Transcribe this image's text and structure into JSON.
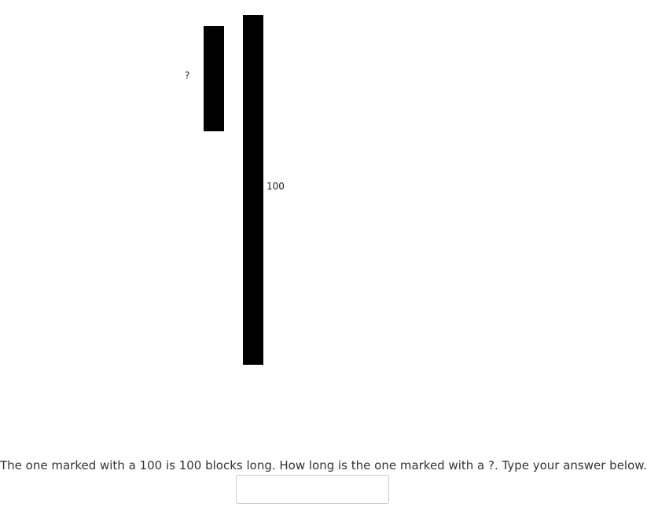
{
  "bars": {
    "unknown": {
      "label": "?",
      "length_blocks": null
    },
    "reference": {
      "label": "100",
      "length_blocks": 100
    }
  },
  "question": {
    "text": "The one marked with a 100 is 100 blocks long. How long is the one marked with a ?. Type your answer below."
  },
  "answer": {
    "value": "",
    "placeholder": ""
  }
}
